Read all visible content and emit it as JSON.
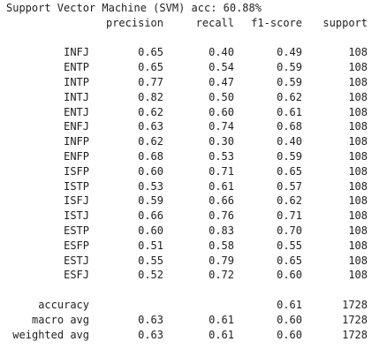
{
  "title": "Support Vector Machine (SVM) acc: 60.88%",
  "headers": {
    "precision": "precision",
    "recall": "recall",
    "f1": "f1-score",
    "support": "support"
  },
  "rows": [
    {
      "label": "INFJ",
      "precision": "0.65",
      "recall": "0.40",
      "f1": "0.49",
      "support": "108"
    },
    {
      "label": "ENTP",
      "precision": "0.65",
      "recall": "0.54",
      "f1": "0.59",
      "support": "108"
    },
    {
      "label": "INTP",
      "precision": "0.77",
      "recall": "0.47",
      "f1": "0.59",
      "support": "108"
    },
    {
      "label": "INTJ",
      "precision": "0.82",
      "recall": "0.50",
      "f1": "0.62",
      "support": "108"
    },
    {
      "label": "ENTJ",
      "precision": "0.62",
      "recall": "0.60",
      "f1": "0.61",
      "support": "108"
    },
    {
      "label": "ENFJ",
      "precision": "0.63",
      "recall": "0.74",
      "f1": "0.68",
      "support": "108"
    },
    {
      "label": "INFP",
      "precision": "0.62",
      "recall": "0.30",
      "f1": "0.40",
      "support": "108"
    },
    {
      "label": "ENFP",
      "precision": "0.68",
      "recall": "0.53",
      "f1": "0.59",
      "support": "108"
    },
    {
      "label": "ISFP",
      "precision": "0.60",
      "recall": "0.71",
      "f1": "0.65",
      "support": "108"
    },
    {
      "label": "ISTP",
      "precision": "0.53",
      "recall": "0.61",
      "f1": "0.57",
      "support": "108"
    },
    {
      "label": "ISFJ",
      "precision": "0.59",
      "recall": "0.66",
      "f1": "0.62",
      "support": "108"
    },
    {
      "label": "ISTJ",
      "precision": "0.66",
      "recall": "0.76",
      "f1": "0.71",
      "support": "108"
    },
    {
      "label": "ESTP",
      "precision": "0.60",
      "recall": "0.83",
      "f1": "0.70",
      "support": "108"
    },
    {
      "label": "ESFP",
      "precision": "0.51",
      "recall": "0.58",
      "f1": "0.55",
      "support": "108"
    },
    {
      "label": "ESTJ",
      "precision": "0.55",
      "recall": "0.79",
      "f1": "0.65",
      "support": "108"
    },
    {
      "label": "ESFJ",
      "precision": "0.52",
      "recall": "0.72",
      "f1": "0.60",
      "support": "108"
    }
  ],
  "summary": [
    {
      "label": "accuracy",
      "precision": "",
      "recall": "",
      "f1": "0.61",
      "support": "1728"
    },
    {
      "label": "macro avg",
      "precision": "0.63",
      "recall": "0.61",
      "f1": "0.60",
      "support": "1728"
    },
    {
      "label": "weighted avg",
      "precision": "0.63",
      "recall": "0.61",
      "f1": "0.60",
      "support": "1728"
    }
  ]
}
